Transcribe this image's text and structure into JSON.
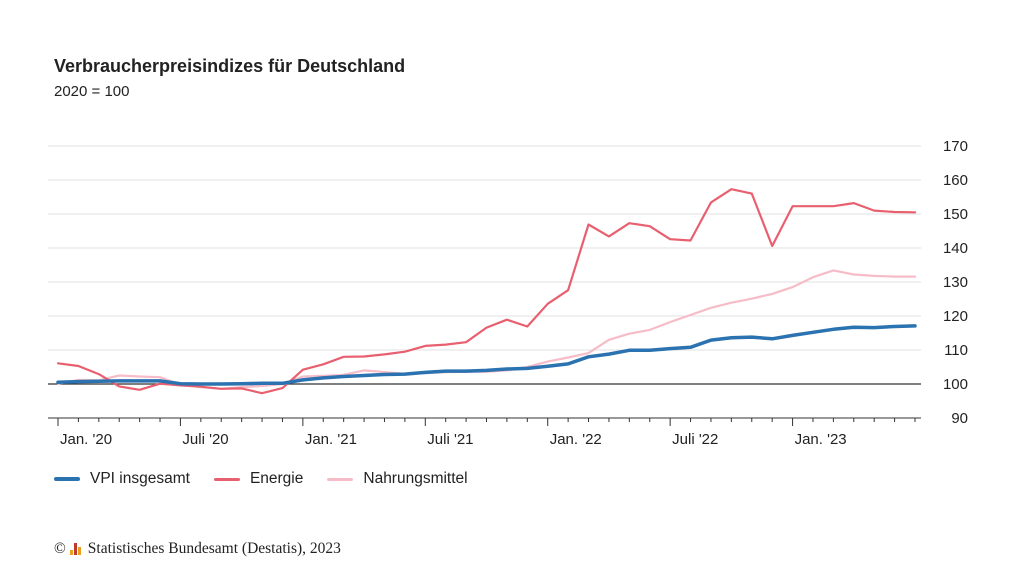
{
  "header": {
    "title": "Verbraucherpreisindizes für Deutschland",
    "subtitle": "2020 = 100"
  },
  "credit": {
    "copyright": "©",
    "text": "Statistisches Bundesamt (Destatis), 2023"
  },
  "colors": {
    "vpi": "#2b72b0",
    "energie": "#e8606f",
    "nahrung": "#f6bcc7",
    "grid": "#e2e2e2",
    "baseline": "#333333",
    "logo": [
      "#e8a020",
      "#c0392b",
      "#e8a020"
    ]
  },
  "chart_data": {
    "type": "line",
    "ylim": [
      90,
      170
    ],
    "y_ticks": [
      90,
      100,
      110,
      120,
      130,
      140,
      150,
      160,
      170
    ],
    "y_axis_position": "right",
    "baseline": 100,
    "grid": true,
    "legend_position": "bottom-left",
    "x_tick_labels": [
      {
        "label": "Jan. '20",
        "index": 0
      },
      {
        "label": "Juli '20",
        "index": 6
      },
      {
        "label": "Jan. '21",
        "index": 12
      },
      {
        "label": "Juli '21",
        "index": 18
      },
      {
        "label": "Jan. '22",
        "index": 24
      },
      {
        "label": "Juli '22",
        "index": 30
      },
      {
        "label": "Jan. '23",
        "index": 36
      }
    ],
    "months": 43,
    "series": [
      {
        "name": "VPI insgesamt",
        "color_key": "vpi",
        "values": [
          100.5,
          100.7,
          100.8,
          100.9,
          100.9,
          100.9,
          100.1,
          100.0,
          100.0,
          100.1,
          100.2,
          100.2,
          101.2,
          101.8,
          102.2,
          102.5,
          102.8,
          102.9,
          103.4,
          103.8,
          103.8,
          104.0,
          104.4,
          104.6,
          105.2,
          105.9,
          108.0,
          108.8,
          109.9,
          109.9,
          110.4,
          110.8,
          112.9,
          113.6,
          113.8,
          113.3,
          114.3,
          115.2,
          116.1,
          116.7,
          116.6,
          116.9,
          117.1
        ]
      },
      {
        "name": "Energie",
        "color_key": "energie",
        "values": [
          106.1,
          105.3,
          102.9,
          99.3,
          98.3,
          100.1,
          99.6,
          99.2,
          98.6,
          98.7,
          97.3,
          98.8,
          104.2,
          105.8,
          108.0,
          108.1,
          108.7,
          109.5,
          111.2,
          111.6,
          112.3,
          116.6,
          118.9,
          116.9,
          123.6,
          127.6,
          146.9,
          143.4,
          147.3,
          146.4,
          142.6,
          142.2,
          153.4,
          157.3,
          156.0,
          140.6,
          152.3,
          152.3,
          152.3,
          153.2,
          151.0,
          150.6,
          150.5
        ]
      },
      {
        "name": "Nahrungsmittel",
        "color_key": "nahrung",
        "values": [
          100.1,
          101.2,
          101.1,
          102.5,
          102.2,
          102.0,
          99.8,
          99.1,
          98.6,
          99.1,
          99.4,
          100.0,
          102.2,
          102.4,
          102.7,
          104.0,
          103.5,
          103.0,
          103.2,
          103.5,
          103.6,
          103.6,
          104.0,
          105.0,
          106.6,
          107.8,
          109.1,
          113.0,
          114.8,
          115.9,
          118.2,
          120.3,
          122.4,
          123.9,
          125.1,
          126.5,
          128.5,
          131.4,
          133.4,
          132.2,
          131.8,
          131.6,
          131.6
        ]
      }
    ]
  }
}
